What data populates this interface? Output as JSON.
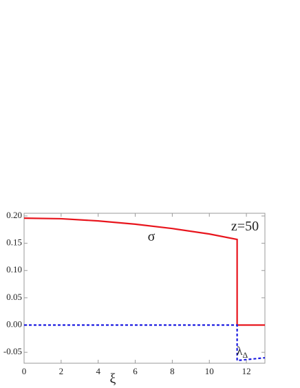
{
  "chart_data": {
    "type": "line",
    "xlabel": "ξ",
    "xlim": [
      0,
      13
    ],
    "xticks": [
      0,
      2,
      4,
      6,
      8,
      10,
      12
    ],
    "ylim": [
      -0.07,
      0.205
    ],
    "yticks": [
      {
        "value": 0.2,
        "label": "0.20"
      },
      {
        "value": 0.15,
        "label": "0.15"
      },
      {
        "value": 0.1,
        "label": "0.10"
      },
      {
        "value": 0.05,
        "label": "0.05"
      },
      {
        "value": 0,
        "label": "0.00"
      },
      {
        "value": -0.05,
        "label": "-0.05"
      }
    ],
    "series": [
      {
        "color": "#e8141c",
        "dash": false,
        "x": [
          0,
          2,
          4,
          6,
          8,
          10,
          11.5,
          11.5,
          13
        ],
        "values": [
          0.196,
          0.195,
          0.191,
          0.185,
          0.177,
          0.167,
          0.157,
          0,
          0
        ]
      },
      {
        "color": "#1a1ae0",
        "dash": true,
        "x": [
          0,
          11.5,
          11.5,
          13
        ],
        "values": [
          0,
          0,
          -0.065,
          -0.06
        ]
      }
    ],
    "annotations": [
      {
        "text": "σ"
      },
      {
        "text": "z=50"
      },
      {
        "text": "λ",
        "subscript": "Δ"
      }
    ]
  }
}
